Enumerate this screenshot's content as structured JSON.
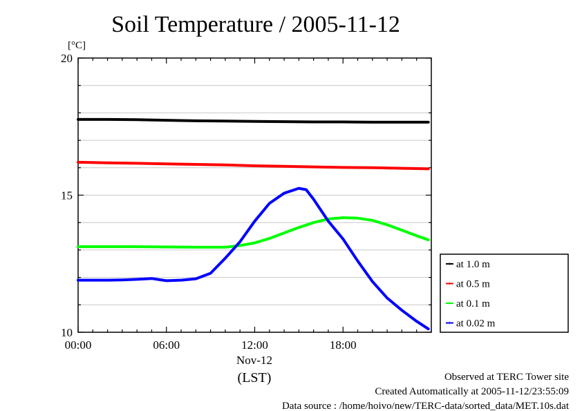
{
  "chart_data": {
    "type": "line",
    "title": "Soil Temperature / 2005-11-12",
    "ylabel": "[°C]",
    "xlabel": "(LST)",
    "x_date_label": "Nov-12",
    "xlim": [
      0,
      24
    ],
    "ylim": [
      10,
      20
    ],
    "x_ticks": [
      0,
      6,
      12,
      18
    ],
    "x_tick_labels": [
      "00:00",
      "06:00",
      "12:00",
      "18:00"
    ],
    "y_ticks": [
      10,
      15,
      20
    ],
    "y_tick_labels": [
      "10",
      "15",
      "20"
    ],
    "grid": true,
    "legend_position": "right",
    "series": [
      {
        "name": "at 1.0 m",
        "color": "#000000",
        "x": [
          0,
          2,
          4,
          6,
          8,
          10,
          12,
          14,
          16,
          18,
          20,
          22,
          23.8
        ],
        "y": [
          17.76,
          17.76,
          17.75,
          17.73,
          17.71,
          17.7,
          17.69,
          17.68,
          17.67,
          17.67,
          17.66,
          17.66,
          17.66
        ]
      },
      {
        "name": "at 0.5 m",
        "color": "#ff0000",
        "x": [
          0,
          2,
          4,
          6,
          8,
          10,
          12,
          14,
          16,
          18,
          20,
          22,
          23.8
        ],
        "y": [
          16.2,
          16.18,
          16.16,
          16.14,
          16.12,
          16.1,
          16.07,
          16.05,
          16.03,
          16.01,
          16.0,
          15.98,
          15.96
        ]
      },
      {
        "name": "at 0.1 m",
        "color": "#00ff00",
        "x": [
          0,
          2,
          4,
          6,
          8,
          10,
          11,
          12,
          13,
          14,
          15,
          16,
          17,
          18,
          19,
          20,
          21,
          22,
          23,
          23.8
        ],
        "y": [
          13.12,
          13.12,
          13.12,
          13.11,
          13.1,
          13.1,
          13.16,
          13.26,
          13.42,
          13.62,
          13.82,
          14.0,
          14.13,
          14.18,
          14.16,
          14.08,
          13.92,
          13.72,
          13.52,
          13.37
        ]
      },
      {
        "name": "at 0.02 m",
        "color": "#0000ff",
        "x": [
          0,
          1,
          2,
          3,
          4,
          5,
          6,
          7,
          8,
          9,
          10,
          11,
          12,
          13,
          14,
          15,
          15.5,
          16,
          17,
          18,
          19,
          20,
          21,
          22,
          23,
          23.8
        ],
        "y": [
          11.9,
          11.9,
          11.9,
          11.91,
          11.93,
          11.96,
          11.88,
          11.9,
          11.95,
          12.15,
          12.7,
          13.3,
          14.05,
          14.7,
          15.07,
          15.25,
          15.2,
          14.85,
          14.05,
          13.4,
          12.6,
          11.85,
          11.25,
          10.8,
          10.4,
          10.12
        ]
      }
    ]
  },
  "footer": {
    "line1": "Observed at TERC Tower site",
    "line2": "Created Automatically at 2005-11-12/23:55:09",
    "line3": "Data source : /home/hoivo/new/TERC-data/sorted_data/MET.10s.dat"
  }
}
